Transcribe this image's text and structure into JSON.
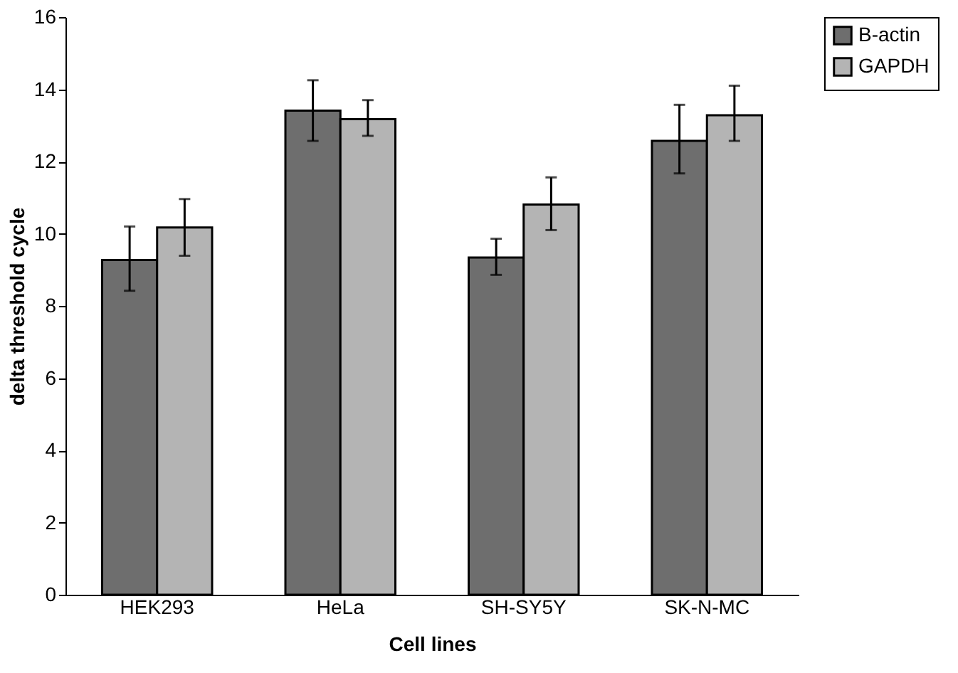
{
  "chart_data": {
    "type": "bar",
    "xlabel": "Cell lines",
    "ylabel": "delta threshold cycle",
    "categories": [
      "HEK293",
      "HeLa",
      "SH-SY5Y",
      "SK-N-MC"
    ],
    "series": [
      {
        "name": "B-actin",
        "color": "#6e6e6e",
        "values": [
          9.27,
          13.41,
          9.34,
          12.57
        ],
        "errors": [
          [
            8.42,
            10.2
          ],
          [
            12.57,
            14.25
          ],
          [
            8.86,
            9.86
          ],
          [
            11.67,
            13.57
          ]
        ]
      },
      {
        "name": "GAPDH",
        "color": "#b4b4b4",
        "values": [
          10.17,
          13.17,
          10.81,
          13.28
        ],
        "errors": [
          [
            9.39,
            10.96
          ],
          [
            12.71,
            13.7
          ],
          [
            10.1,
            11.56
          ],
          [
            12.57,
            14.1
          ]
        ]
      }
    ],
    "ylim": [
      0,
      16
    ],
    "yticks": [
      0,
      2,
      4,
      6,
      8,
      10,
      12,
      14,
      16
    ],
    "grid": false,
    "legend": "right"
  }
}
